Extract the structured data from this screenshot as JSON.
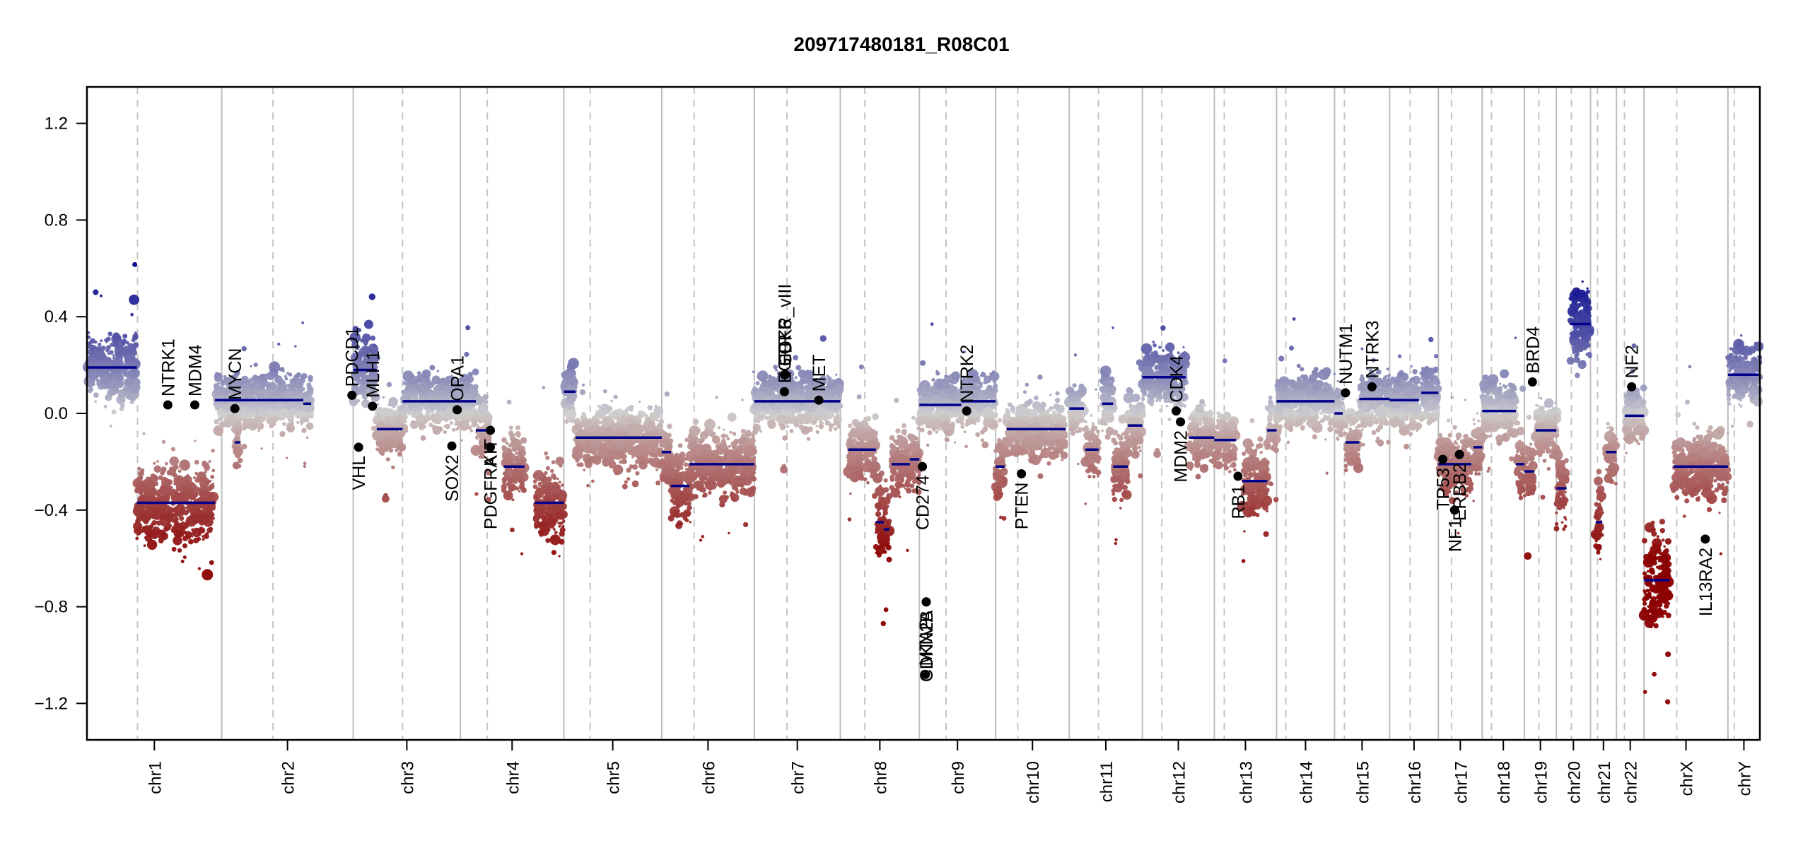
{
  "chart_data": {
    "type": "scatter",
    "title": "209717480181_R08C01",
    "xlabel": "",
    "ylabel": "",
    "ylim": [
      -1.35,
      1.35
    ],
    "yticks": [
      -1.2,
      -0.8,
      -0.4,
      0.0,
      0.4,
      0.8,
      1.2
    ],
    "ytick_labels": [
      "−1.2",
      "−0.8",
      "−0.4",
      "0.0",
      "0.4",
      "0.8",
      "1.2"
    ],
    "grid": false,
    "legend": "none",
    "color_scale": {
      "low": "#8b0000",
      "mid": "#cfcfcf",
      "high": "#00008b",
      "range": [
        -0.6,
        0.6
      ]
    },
    "segment_color": "#00008b",
    "gene_marker_color": "#000000",
    "chromosomes": [
      {
        "name": "chr1",
        "length": 249,
        "centromere": 0.375
      },
      {
        "name": "chr2",
        "length": 243,
        "centromere": 0.39
      },
      {
        "name": "chr3",
        "length": 198,
        "centromere": 0.46
      },
      {
        "name": "chr4",
        "length": 191,
        "centromere": 0.26
      },
      {
        "name": "chr5",
        "length": 181,
        "centromere": 0.27
      },
      {
        "name": "chr6",
        "length": 171,
        "centromere": 0.35
      },
      {
        "name": "chr7",
        "length": 159,
        "centromere": 0.38
      },
      {
        "name": "chr8",
        "length": 146,
        "centromere": 0.31
      },
      {
        "name": "chr9",
        "length": 141,
        "centromere": 0.35
      },
      {
        "name": "chr10",
        "length": 136,
        "centromere": 0.3
      },
      {
        "name": "chr11",
        "length": 135,
        "centromere": 0.4
      },
      {
        "name": "chr12",
        "length": 133,
        "centromere": 0.27
      },
      {
        "name": "chr13",
        "length": 115,
        "centromere": 0.16
      },
      {
        "name": "chr14",
        "length": 107,
        "centromere": 0.16
      },
      {
        "name": "chr15",
        "length": 102,
        "centromere": 0.18
      },
      {
        "name": "chr16",
        "length": 90,
        "centromere": 0.42
      },
      {
        "name": "chr17",
        "length": 81,
        "centromere": 0.3
      },
      {
        "name": "chr18",
        "length": 78,
        "centromere": 0.22
      },
      {
        "name": "chr19",
        "length": 59,
        "centromere": 0.45
      },
      {
        "name": "chr20",
        "length": 63,
        "centromere": 0.44
      },
      {
        "name": "chr21",
        "length": 48,
        "centromere": 0.27
      },
      {
        "name": "chr22",
        "length": 51,
        "centromere": 0.29
      },
      {
        "name": "chrX",
        "length": 155,
        "centromere": 0.39
      },
      {
        "name": "chrY",
        "length": 59,
        "centromere": 0.2
      }
    ],
    "segments": [
      {
        "chr": "chr1",
        "start": 0.0,
        "end": 0.37,
        "value": 0.19
      },
      {
        "chr": "chr1",
        "start": 0.37,
        "end": 0.95,
        "value": -0.37
      },
      {
        "chr": "chr1",
        "start": 0.95,
        "end": 1.0,
        "value": 0.055
      },
      {
        "chr": "chr2",
        "start": 0.0,
        "end": 0.3,
        "value": 0.055
      },
      {
        "chr": "chr2",
        "start": 0.1,
        "end": 0.14,
        "value": -0.12
      },
      {
        "chr": "chr2",
        "start": 0.3,
        "end": 0.62,
        "value": 0.055
      },
      {
        "chr": "chr2",
        "start": 0.62,
        "end": 0.68,
        "value": 0.04
      },
      {
        "chr": "chr3",
        "start": 0.0,
        "end": 0.22,
        "value": 0.18
      },
      {
        "chr": "chr3",
        "start": 0.22,
        "end": 0.46,
        "value": -0.065
      },
      {
        "chr": "chr3",
        "start": 0.46,
        "end": 1.0,
        "value": 0.05
      },
      {
        "chr": "chr4",
        "start": 0.0,
        "end": 0.15,
        "value": 0.05
      },
      {
        "chr": "chr4",
        "start": 0.15,
        "end": 0.28,
        "value": -0.07
      },
      {
        "chr": "chr4",
        "start": 0.42,
        "end": 0.62,
        "value": -0.22
      },
      {
        "chr": "chr4",
        "start": 0.72,
        "end": 1.0,
        "value": -0.37
      },
      {
        "chr": "chr5",
        "start": 0.0,
        "end": 0.12,
        "value": 0.09
      },
      {
        "chr": "chr5",
        "start": 0.12,
        "end": 1.0,
        "value": -0.1
      },
      {
        "chr": "chr6",
        "start": 0.0,
        "end": 0.1,
        "value": -0.16
      },
      {
        "chr": "chr6",
        "start": 0.1,
        "end": 0.3,
        "value": -0.3
      },
      {
        "chr": "chr6",
        "start": 0.3,
        "end": 1.0,
        "value": -0.21
      },
      {
        "chr": "chr7",
        "start": 0.0,
        "end": 1.0,
        "value": 0.05
      },
      {
        "chr": "chr8",
        "start": 0.1,
        "end": 0.45,
        "value": -0.15
      },
      {
        "chr": "chr8",
        "start": 0.45,
        "end": 0.55,
        "value": -0.45
      },
      {
        "chr": "chr8",
        "start": 0.55,
        "end": 0.62,
        "value": -0.48
      },
      {
        "chr": "chr8",
        "start": 0.65,
        "end": 0.88,
        "value": -0.21
      },
      {
        "chr": "chr8",
        "start": 0.88,
        "end": 1.0,
        "value": -0.19
      },
      {
        "chr": "chr9",
        "start": 0.0,
        "end": 0.55,
        "value": 0.035
      },
      {
        "chr": "chr9",
        "start": 0.55,
        "end": 1.0,
        "value": 0.05
      },
      {
        "chr": "chr10",
        "start": 0.0,
        "end": 0.12,
        "value": -0.22
      },
      {
        "chr": "chr10",
        "start": 0.15,
        "end": 0.95,
        "value": -0.065
      },
      {
        "chr": "chr11",
        "start": 0.0,
        "end": 0.2,
        "value": 0.02
      },
      {
        "chr": "chr11",
        "start": 0.22,
        "end": 0.4,
        "value": -0.15
      },
      {
        "chr": "chr11",
        "start": 0.45,
        "end": 0.6,
        "value": 0.04
      },
      {
        "chr": "chr11",
        "start": 0.6,
        "end": 0.8,
        "value": -0.22
      },
      {
        "chr": "chr11",
        "start": 0.8,
        "end": 1.0,
        "value": -0.05
      },
      {
        "chr": "chr12",
        "start": 0.0,
        "end": 0.6,
        "value": 0.15
      },
      {
        "chr": "chr12",
        "start": 0.65,
        "end": 1.0,
        "value": -0.1
      },
      {
        "chr": "chr13",
        "start": 0.0,
        "end": 0.35,
        "value": -0.11
      },
      {
        "chr": "chr13",
        "start": 0.45,
        "end": 0.85,
        "value": -0.28
      },
      {
        "chr": "chr13",
        "start": 0.85,
        "end": 1.0,
        "value": -0.07
      },
      {
        "chr": "chr14",
        "start": 0.0,
        "end": 1.0,
        "value": 0.05
      },
      {
        "chr": "chr15",
        "start": 0.0,
        "end": 0.15,
        "value": 0.0
      },
      {
        "chr": "chr15",
        "start": 0.2,
        "end": 0.45,
        "value": -0.12
      },
      {
        "chr": "chr15",
        "start": 0.45,
        "end": 1.0,
        "value": 0.06
      },
      {
        "chr": "chr16",
        "start": 0.0,
        "end": 0.6,
        "value": 0.055
      },
      {
        "chr": "chr16",
        "start": 0.65,
        "end": 1.0,
        "value": 0.085
      },
      {
        "chr": "chr17",
        "start": 0.0,
        "end": 0.75,
        "value": -0.21
      },
      {
        "chr": "chr17",
        "start": 0.8,
        "end": 1.0,
        "value": -0.14
      },
      {
        "chr": "chr18",
        "start": 0.0,
        "end": 0.8,
        "value": 0.01
      },
      {
        "chr": "chr18",
        "start": 0.8,
        "end": 1.0,
        "value": -0.21
      },
      {
        "chr": "chr19",
        "start": 0.0,
        "end": 0.3,
        "value": -0.24
      },
      {
        "chr": "chr19",
        "start": 0.35,
        "end": 1.0,
        "value": -0.07
      },
      {
        "chr": "chr20",
        "start": 0.0,
        "end": 0.3,
        "value": -0.31
      },
      {
        "chr": "chr20",
        "start": 0.4,
        "end": 1.0,
        "value": 0.37
      },
      {
        "chr": "chr21",
        "start": 0.2,
        "end": 0.45,
        "value": -0.45
      },
      {
        "chr": "chr21",
        "start": 0.6,
        "end": 1.0,
        "value": -0.16
      },
      {
        "chr": "chr22",
        "start": 0.3,
        "end": 1.0,
        "value": -0.01
      },
      {
        "chr": "chrX",
        "start": 0.0,
        "end": 0.3,
        "value": -0.69
      },
      {
        "chr": "chrX",
        "start": 0.35,
        "end": 1.0,
        "value": -0.22
      },
      {
        "chrY": null,
        "chr": "chrY",
        "start": 0.0,
        "end": 1.0,
        "value": 0.16
      }
    ],
    "genes": [
      {
        "name": "NTRK1",
        "chr": "chr1",
        "pos": 0.6,
        "value": 0.035,
        "label_side": "above"
      },
      {
        "name": "MDM4",
        "chr": "chr1",
        "pos": 0.8,
        "value": 0.035,
        "label_side": "above"
      },
      {
        "name": "MYCN",
        "chr": "chr2",
        "pos": 0.1,
        "value": 0.02,
        "label_side": "above"
      },
      {
        "name": "PDCD1",
        "chr": "chr2",
        "pos": 0.99,
        "value": 0.075,
        "label_side": "above"
      },
      {
        "name": "VHL",
        "chr": "chr3",
        "pos": 0.05,
        "value": -0.14,
        "label_side": "below"
      },
      {
        "name": "MLH1",
        "chr": "chr3",
        "pos": 0.18,
        "value": 0.03,
        "label_side": "above"
      },
      {
        "name": "SOX2",
        "chr": "chr3",
        "pos": 0.92,
        "value": -0.135,
        "label_side": "below"
      },
      {
        "name": "OPA1",
        "chr": "chr3",
        "pos": 0.97,
        "value": 0.015,
        "label_side": "above"
      },
      {
        "name": "PDGFRA",
        "chr": "chr4",
        "pos": 0.29,
        "value": -0.14,
        "label_side": "below"
      },
      {
        "name": "KIT",
        "chr": "chr4",
        "pos": 0.29,
        "value": -0.07,
        "label_side": "below"
      },
      {
        "name": "EGFR",
        "chr": "chr7",
        "pos": 0.35,
        "value": 0.09,
        "label_side": "above"
      },
      {
        "name": "CDK6",
        "chr": "chr7",
        "pos": 0.36,
        "value": 0.16,
        "label_side": "above"
      },
      {
        "name": "EGFR_vIII",
        "chr": "chr7",
        "pos": 0.35,
        "value": 0.16,
        "label_side": "above"
      },
      {
        "name": "MET",
        "chr": "chr7",
        "pos": 0.75,
        "value": 0.055,
        "label_side": "above"
      },
      {
        "name": "CD274",
        "chr": "chr9",
        "pos": 0.04,
        "value": -0.22,
        "label_side": "below"
      },
      {
        "name": "CDKN2A",
        "chr": "chr9",
        "pos": 0.09,
        "value": -0.78,
        "label_side": "below"
      },
      {
        "name": "CDKN2B",
        "chr": "chr9",
        "pos": 0.09,
        "value": -0.78,
        "label_side": "below"
      },
      {
        "name": "MTAP",
        "chr": "chr9",
        "pos": 0.08,
        "value": -1.08,
        "label_side": "above"
      },
      {
        "name": "NTRK2",
        "chr": "chr9",
        "pos": 0.62,
        "value": 0.01,
        "label_side": "above"
      },
      {
        "name": "PTEN",
        "chr": "chr10",
        "pos": 0.35,
        "value": -0.25,
        "label_side": "below"
      },
      {
        "name": "CDK4",
        "chr": "chr12",
        "pos": 0.47,
        "value": 0.01,
        "label_side": "above"
      },
      {
        "name": "MDM2",
        "chr": "chr12",
        "pos": 0.53,
        "value": -0.035,
        "label_side": "below"
      },
      {
        "name": "RB1",
        "chr": "chr13",
        "pos": 0.38,
        "value": -0.26,
        "label_side": "below"
      },
      {
        "name": "NUTM1",
        "chr": "chr15",
        "pos": 0.2,
        "value": 0.085,
        "label_side": "above"
      },
      {
        "name": "NTRK3",
        "chr": "chr15",
        "pos": 0.68,
        "value": 0.11,
        "label_side": "above"
      },
      {
        "name": "TP53",
        "chr": "chr17",
        "pos": 0.1,
        "value": -0.19,
        "label_side": "below"
      },
      {
        "name": "NF1",
        "chr": "chr17",
        "pos": 0.37,
        "value": -0.4,
        "label_side": "below"
      },
      {
        "name": "ERBB2",
        "chr": "chr17",
        "pos": 0.48,
        "value": -0.17,
        "label_side": "below"
      },
      {
        "name": "BRD4",
        "chr": "chr19",
        "pos": 0.25,
        "value": 0.13,
        "label_side": "above"
      },
      {
        "name": "NF2",
        "chr": "chr22",
        "pos": 0.55,
        "value": 0.11,
        "label_side": "above"
      },
      {
        "name": "IL13RA2",
        "chr": "chrX",
        "pos": 0.73,
        "value": -0.52,
        "label_side": "below"
      }
    ]
  }
}
